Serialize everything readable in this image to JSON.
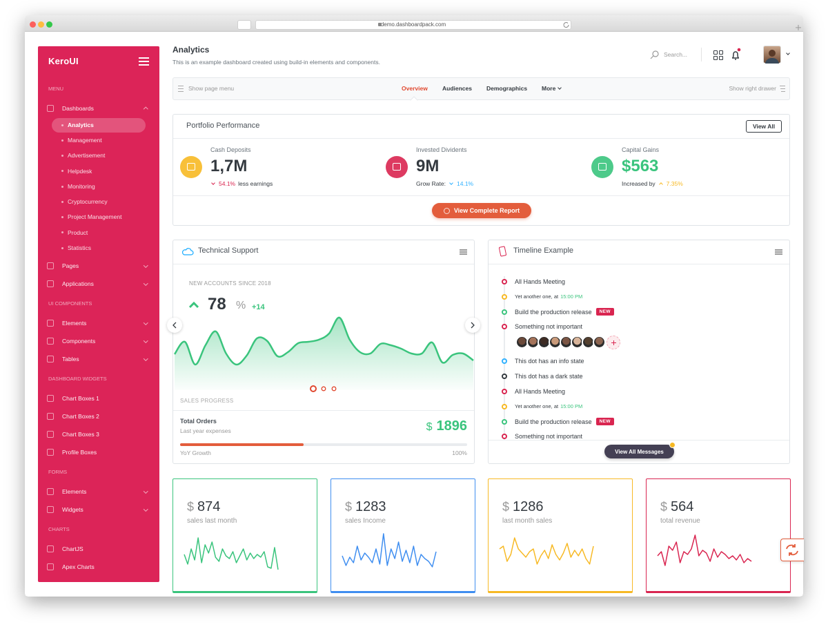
{
  "browser": {
    "url": "demo.dashboardpack.com"
  },
  "sidebar": {
    "brand": "KeroUI",
    "groups": [
      {
        "heading": "MENU",
        "items": [
          {
            "label": "Dashboards",
            "submenu": true,
            "open": true,
            "active_child": 0,
            "children": [
              "Analytics",
              "Management",
              "Advertisement",
              "Helpdesk",
              "Monitoring",
              "Cryptocurrency",
              "Project Management",
              "Product",
              "Statistics"
            ]
          },
          {
            "label": "Pages",
            "submenu": true
          },
          {
            "label": "Applications",
            "submenu": true
          }
        ]
      },
      {
        "heading": "UI COMPONENTS",
        "items": [
          {
            "label": "Elements",
            "submenu": true
          },
          {
            "label": "Components",
            "submenu": true
          },
          {
            "label": "Tables",
            "submenu": true
          }
        ]
      },
      {
        "heading": "DASHBOARD WIDGETS",
        "items": [
          {
            "label": "Chart Boxes 1"
          },
          {
            "label": "Chart Boxes 2"
          },
          {
            "label": "Chart Boxes 3"
          },
          {
            "label": "Profile Boxes"
          }
        ]
      },
      {
        "heading": "FORMS",
        "items": [
          {
            "label": "Elements",
            "submenu": true
          },
          {
            "label": "Widgets",
            "submenu": true
          }
        ]
      },
      {
        "heading": "CHARTS",
        "items": [
          {
            "label": "ChartJS"
          },
          {
            "label": "Apex Charts"
          }
        ]
      }
    ]
  },
  "header": {
    "title": "Analytics",
    "subtitle": "This is an example dashboard created using build-in elements and components.",
    "search_placeholder": "Search..."
  },
  "tabs": {
    "left": "Show page menu",
    "items": [
      "Overview",
      "Audiences",
      "Demographics",
      "More"
    ],
    "active": 0,
    "right": "Show right drawer"
  },
  "portfolio": {
    "title": "Portfolio Performance",
    "button": "View All",
    "footer_button": "View Complete Report",
    "stats": [
      {
        "label": "Cash Deposits",
        "value": "1,7M",
        "icon_color": "#f7b924",
        "value_color": "#343a40",
        "change": "54.1%",
        "direction": "down",
        "change_color": "#d92550",
        "note_after": "less earnings"
      },
      {
        "label": "Invested Dividents",
        "value": "9M",
        "icon_color": "#d92550",
        "value_color": "#343a40",
        "note_before": "Grow Rate:",
        "change": "14.1%",
        "direction": "down",
        "change_color": "#30b1ff"
      },
      {
        "label": "Capital Gains",
        "value": "$563",
        "icon_color": "#3ac47d",
        "value_color": "#3ac47d",
        "note_before": "Increased by",
        "change": "7.35%",
        "direction": "up",
        "change_color": "#f7b924"
      }
    ]
  },
  "support": {
    "title": "Technical Support",
    "caption": "NEW ACCOUNTS SINCE 2018",
    "value": 78,
    "unit": "%",
    "delta": "+14",
    "chart": {
      "color": "#3ac47d",
      "values": [
        52,
        70,
        37,
        65,
        85,
        53,
        37,
        50,
        75,
        71,
        49,
        55,
        68,
        70,
        73,
        82,
        105,
        73,
        55,
        53,
        67,
        65,
        60,
        53,
        53,
        69,
        40,
        51,
        53,
        43
      ]
    },
    "slide_count": 3,
    "active_slide": 0,
    "progress_caption": "SALES PROGRESS",
    "orders_title": "Total Orders",
    "orders_subtitle": "Last year expenses",
    "currency": "$",
    "orders_value": 1896,
    "progress": 43,
    "progress_left": "YoY Growth",
    "progress_right": "100%"
  },
  "timeline": {
    "title": "Timeline Example",
    "button": "View All Messages",
    "items": [
      {
        "text": "All Hands Meeting",
        "color": "#d92550"
      },
      {
        "text": "Yet another one, at",
        "time": "15:00 PM",
        "color": "#f7b924"
      },
      {
        "text": "Build the production release",
        "badge": "NEW",
        "color": "#3ac47d"
      },
      {
        "text": "Something not important",
        "color": "#d92550",
        "avatars": 8
      },
      {
        "text": "This dot has an info state",
        "color": "#30b1ff"
      },
      {
        "text": "This dot has a dark state",
        "color": "#343a40"
      },
      {
        "text": "All Hands Meeting",
        "color": "#d92550"
      },
      {
        "text": "Yet another one, at",
        "time": "15:00 PM",
        "color": "#f7b924"
      },
      {
        "text": "Build the production release",
        "badge": "NEW",
        "color": "#3ac47d"
      },
      {
        "text": "Something not important",
        "color": "#d92550"
      }
    ]
  },
  "stat_cards": [
    {
      "currency": "$",
      "value": 874,
      "label": "sales last month",
      "color": "#3ac47d",
      "spark": [
        22,
        8,
        30,
        14,
        46,
        10,
        36,
        24,
        40,
        18,
        12,
        30,
        20,
        16,
        26,
        10,
        20,
        30,
        14,
        24,
        16,
        22,
        18,
        26,
        4,
        2,
        32,
        0
      ]
    },
    {
      "currency": "$",
      "value": 1283,
      "label": "sales Income",
      "color": "#3f8ef0",
      "spark": [
        20,
        6,
        18,
        10,
        34,
        14,
        24,
        18,
        10,
        30,
        8,
        52,
        6,
        30,
        16,
        40,
        12,
        28,
        10,
        34,
        6,
        22,
        16,
        12,
        4,
        26
      ]
    },
    {
      "currency": "$",
      "value": 1286,
      "label": "last month sales",
      "color": "#f7b924",
      "spark": [
        30,
        34,
        12,
        22,
        46,
        30,
        24,
        18,
        26,
        30,
        8,
        20,
        28,
        16,
        36,
        22,
        14,
        24,
        38,
        18,
        28,
        20,
        30,
        16,
        8,
        34
      ]
    },
    {
      "currency": "$",
      "value": 564,
      "label": "total revenue",
      "color": "#d92550",
      "spark": [
        20,
        26,
        6,
        34,
        28,
        40,
        10,
        26,
        22,
        30,
        50,
        20,
        28,
        24,
        12,
        30,
        18,
        26,
        22,
        16,
        20,
        14,
        22,
        10,
        16,
        12
      ]
    }
  ]
}
